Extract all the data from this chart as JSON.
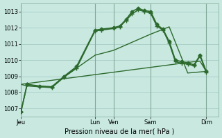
{
  "bg_color": "#c8e8e0",
  "grid_color": "#a0c8c0",
  "line_color": "#2d6a2d",
  "xlabel": "Pression niveau de la mer( hPa )",
  "ylim": [
    1006.5,
    1013.5
  ],
  "yticks": [
    1007,
    1008,
    1009,
    1010,
    1011,
    1012,
    1013
  ],
  "x_day_labels": [
    "Jeu",
    "Lun",
    "Ven",
    "Sam",
    "Dim"
  ],
  "x_day_positions": [
    0,
    12,
    15,
    21,
    30
  ],
  "xlim": [
    0,
    32
  ],
  "series": [
    {
      "x": [
        0,
        1,
        2,
        3,
        4,
        5,
        6,
        7,
        8,
        9,
        10,
        11,
        12,
        13,
        14,
        15,
        16,
        17,
        18,
        19,
        20,
        21,
        22,
        23,
        24,
        25,
        26,
        27,
        28,
        29,
        30
      ],
      "y": [
        1008.5,
        1008.55,
        1008.6,
        1008.65,
        1008.7,
        1008.75,
        1008.8,
        1008.85,
        1008.9,
        1008.95,
        1009.0,
        1009.05,
        1009.1,
        1009.15,
        1009.2,
        1009.25,
        1009.3,
        1009.35,
        1009.4,
        1009.45,
        1009.5,
        1009.55,
        1009.6,
        1009.65,
        1009.7,
        1009.75,
        1009.8,
        1009.85,
        1009.9,
        1009.92,
        1009.3
      ],
      "marker": null,
      "lw": 1.0
    },
    {
      "x": [
        0,
        1,
        3,
        5,
        7,
        9,
        12,
        13,
        15,
        16,
        17,
        18,
        19,
        20,
        21,
        22,
        23,
        24,
        25,
        26,
        27,
        28,
        29,
        30
      ],
      "y": [
        1006.8,
        1008.5,
        1008.4,
        1008.35,
        1009.0,
        1009.6,
        1011.85,
        1011.9,
        1012.0,
        1012.1,
        1012.5,
        1013.0,
        1013.2,
        1013.05,
        1013.0,
        1012.2,
        1011.9,
        1011.15,
        1010.0,
        1009.9,
        1009.85,
        1009.7,
        1010.3,
        1009.3
      ],
      "marker": "D",
      "lw": 1.2
    },
    {
      "x": [
        0,
        1,
        3,
        5,
        7,
        9,
        12,
        13,
        15,
        16,
        17,
        18,
        19,
        20,
        21,
        22,
        23,
        24,
        25,
        26,
        27,
        28,
        29,
        30
      ],
      "y": [
        1006.8,
        1008.5,
        1008.35,
        1008.3,
        1008.95,
        1009.5,
        1011.8,
        1011.85,
        1011.95,
        1012.05,
        1012.45,
        1012.85,
        1013.1,
        1013.0,
        1012.9,
        1012.1,
        1011.85,
        1011.05,
        1009.9,
        1009.8,
        1009.75,
        1009.65,
        1010.25,
        1009.25
      ],
      "marker": "+",
      "lw": 1.2
    },
    {
      "x": [
        0,
        1,
        3,
        5,
        7,
        9,
        12,
        15,
        18,
        21,
        24,
        27,
        30
      ],
      "y": [
        1008.5,
        1008.4,
        1008.35,
        1008.35,
        1009.0,
        1009.5,
        1010.3,
        1010.6,
        1011.1,
        1011.6,
        1012.05,
        1009.2,
        1009.3
      ],
      "marker": null,
      "lw": 1.0
    }
  ]
}
